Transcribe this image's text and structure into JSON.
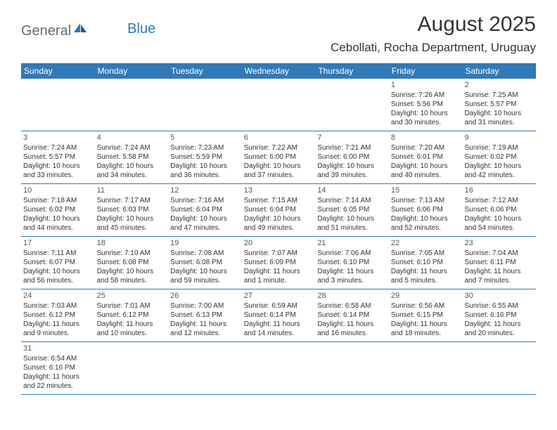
{
  "logo": {
    "part1": "General",
    "part2": "Blue"
  },
  "title": "August 2025",
  "location": "Cebollati, Rocha Department, Uruguay",
  "colors": {
    "header_bg": "#3279b7",
    "header_text": "#ffffff",
    "border": "#3279b7",
    "text": "#333333",
    "logo_gray": "#5f6b76",
    "logo_blue": "#2f78b8"
  },
  "day_headers": [
    "Sunday",
    "Monday",
    "Tuesday",
    "Wednesday",
    "Thursday",
    "Friday",
    "Saturday"
  ],
  "weeks": [
    [
      null,
      null,
      null,
      null,
      null,
      {
        "n": "1",
        "sr": "Sunrise: 7:26 AM",
        "ss": "Sunset: 5:56 PM",
        "dl": "Daylight: 10 hours and 30 minutes."
      },
      {
        "n": "2",
        "sr": "Sunrise: 7:25 AM",
        "ss": "Sunset: 5:57 PM",
        "dl": "Daylight: 10 hours and 31 minutes."
      }
    ],
    [
      {
        "n": "3",
        "sr": "Sunrise: 7:24 AM",
        "ss": "Sunset: 5:57 PM",
        "dl": "Daylight: 10 hours and 33 minutes."
      },
      {
        "n": "4",
        "sr": "Sunrise: 7:24 AM",
        "ss": "Sunset: 5:58 PM",
        "dl": "Daylight: 10 hours and 34 minutes."
      },
      {
        "n": "5",
        "sr": "Sunrise: 7:23 AM",
        "ss": "Sunset: 5:59 PM",
        "dl": "Daylight: 10 hours and 36 minutes."
      },
      {
        "n": "6",
        "sr": "Sunrise: 7:22 AM",
        "ss": "Sunset: 6:00 PM",
        "dl": "Daylight: 10 hours and 37 minutes."
      },
      {
        "n": "7",
        "sr": "Sunrise: 7:21 AM",
        "ss": "Sunset: 6:00 PM",
        "dl": "Daylight: 10 hours and 39 minutes."
      },
      {
        "n": "8",
        "sr": "Sunrise: 7:20 AM",
        "ss": "Sunset: 6:01 PM",
        "dl": "Daylight: 10 hours and 40 minutes."
      },
      {
        "n": "9",
        "sr": "Sunrise: 7:19 AM",
        "ss": "Sunset: 6:02 PM",
        "dl": "Daylight: 10 hours and 42 minutes."
      }
    ],
    [
      {
        "n": "10",
        "sr": "Sunrise: 7:18 AM",
        "ss": "Sunset: 6:02 PM",
        "dl": "Daylight: 10 hours and 44 minutes."
      },
      {
        "n": "11",
        "sr": "Sunrise: 7:17 AM",
        "ss": "Sunset: 6:03 PM",
        "dl": "Daylight: 10 hours and 45 minutes."
      },
      {
        "n": "12",
        "sr": "Sunrise: 7:16 AM",
        "ss": "Sunset: 6:04 PM",
        "dl": "Daylight: 10 hours and 47 minutes."
      },
      {
        "n": "13",
        "sr": "Sunrise: 7:15 AM",
        "ss": "Sunset: 6:04 PM",
        "dl": "Daylight: 10 hours and 49 minutes."
      },
      {
        "n": "14",
        "sr": "Sunrise: 7:14 AM",
        "ss": "Sunset: 6:05 PM",
        "dl": "Daylight: 10 hours and 51 minutes."
      },
      {
        "n": "15",
        "sr": "Sunrise: 7:13 AM",
        "ss": "Sunset: 6:06 PM",
        "dl": "Daylight: 10 hours and 52 minutes."
      },
      {
        "n": "16",
        "sr": "Sunrise: 7:12 AM",
        "ss": "Sunset: 6:06 PM",
        "dl": "Daylight: 10 hours and 54 minutes."
      }
    ],
    [
      {
        "n": "17",
        "sr": "Sunrise: 7:11 AM",
        "ss": "Sunset: 6:07 PM",
        "dl": "Daylight: 10 hours and 56 minutes."
      },
      {
        "n": "18",
        "sr": "Sunrise: 7:10 AM",
        "ss": "Sunset: 6:08 PM",
        "dl": "Daylight: 10 hours and 58 minutes."
      },
      {
        "n": "19",
        "sr": "Sunrise: 7:08 AM",
        "ss": "Sunset: 6:08 PM",
        "dl": "Daylight: 10 hours and 59 minutes."
      },
      {
        "n": "20",
        "sr": "Sunrise: 7:07 AM",
        "ss": "Sunset: 6:09 PM",
        "dl": "Daylight: 11 hours and 1 minute."
      },
      {
        "n": "21",
        "sr": "Sunrise: 7:06 AM",
        "ss": "Sunset: 6:10 PM",
        "dl": "Daylight: 11 hours and 3 minutes."
      },
      {
        "n": "22",
        "sr": "Sunrise: 7:05 AM",
        "ss": "Sunset: 6:10 PM",
        "dl": "Daylight: 11 hours and 5 minutes."
      },
      {
        "n": "23",
        "sr": "Sunrise: 7:04 AM",
        "ss": "Sunset: 6:11 PM",
        "dl": "Daylight: 11 hours and 7 minutes."
      }
    ],
    [
      {
        "n": "24",
        "sr": "Sunrise: 7:03 AM",
        "ss": "Sunset: 6:12 PM",
        "dl": "Daylight: 11 hours and 9 minutes."
      },
      {
        "n": "25",
        "sr": "Sunrise: 7:01 AM",
        "ss": "Sunset: 6:12 PM",
        "dl": "Daylight: 11 hours and 10 minutes."
      },
      {
        "n": "26",
        "sr": "Sunrise: 7:00 AM",
        "ss": "Sunset: 6:13 PM",
        "dl": "Daylight: 11 hours and 12 minutes."
      },
      {
        "n": "27",
        "sr": "Sunrise: 6:59 AM",
        "ss": "Sunset: 6:14 PM",
        "dl": "Daylight: 11 hours and 14 minutes."
      },
      {
        "n": "28",
        "sr": "Sunrise: 6:58 AM",
        "ss": "Sunset: 6:14 PM",
        "dl": "Daylight: 11 hours and 16 minutes."
      },
      {
        "n": "29",
        "sr": "Sunrise: 6:56 AM",
        "ss": "Sunset: 6:15 PM",
        "dl": "Daylight: 11 hours and 18 minutes."
      },
      {
        "n": "30",
        "sr": "Sunrise: 6:55 AM",
        "ss": "Sunset: 6:16 PM",
        "dl": "Daylight: 11 hours and 20 minutes."
      }
    ],
    [
      {
        "n": "31",
        "sr": "Sunrise: 6:54 AM",
        "ss": "Sunset: 6:16 PM",
        "dl": "Daylight: 11 hours and 22 minutes."
      },
      null,
      null,
      null,
      null,
      null,
      null
    ]
  ]
}
